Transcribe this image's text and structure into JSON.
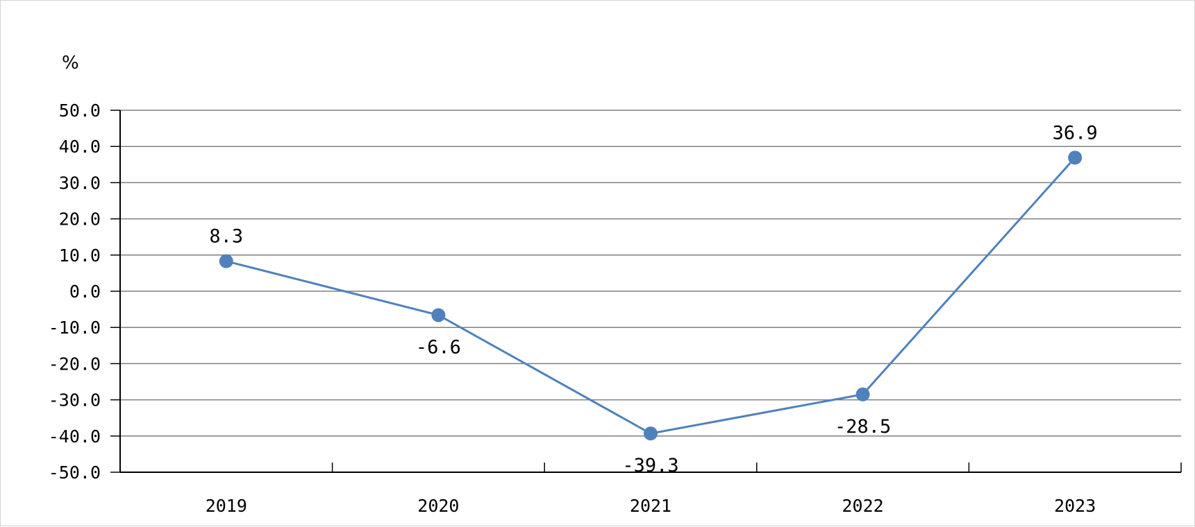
{
  "chart_data": {
    "type": "line",
    "title": "",
    "xlabel": "",
    "ylabel": "%",
    "categories": [
      "2019",
      "2020",
      "2021",
      "2022",
      "2023"
    ],
    "series": [
      {
        "values": [
          8.3,
          -6.6,
          -39.3,
          -28.5,
          36.9
        ],
        "color": "#4f81bd"
      }
    ],
    "data_labels": [
      "8.3",
      "-6.6",
      "-39.3",
      "-28.5",
      "36.9"
    ],
    "label_positions": [
      "above",
      "below",
      "below",
      "below",
      "above"
    ],
    "ylim": [
      -50,
      50
    ],
    "yticks": [
      50,
      40,
      30,
      20,
      10,
      0,
      -10,
      -20,
      -30,
      -40,
      -50
    ],
    "ytick_labels": [
      "50.0",
      "40.0",
      "30.0",
      "20.0",
      "10.0",
      "0.0",
      "-10.0",
      "-20.0",
      "-30.0",
      "-40.0",
      "-50.0"
    ],
    "grid": true,
    "legend": "none"
  }
}
